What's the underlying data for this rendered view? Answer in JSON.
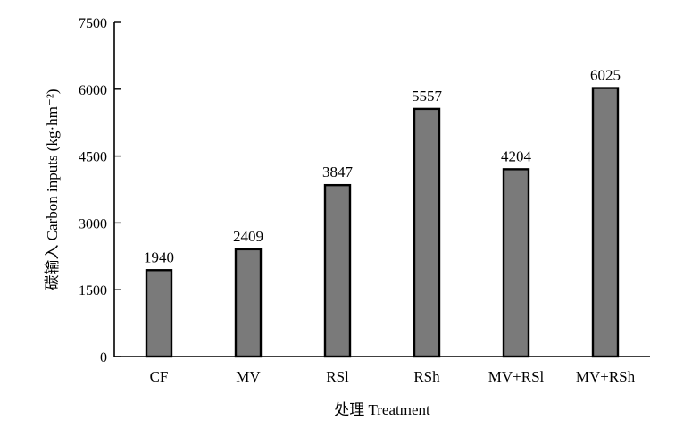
{
  "chart_data": {
    "type": "bar",
    "categories": [
      "CF",
      "MV",
      "RSl",
      "RSh",
      "MV+RSl",
      "MV+RSh"
    ],
    "values": [
      1940,
      2409,
      3847,
      5557,
      4204,
      6025
    ],
    "data_labels": [
      "1940",
      "2409",
      "3847",
      "5557",
      "4204",
      "6025"
    ],
    "xlabel": "处理 Treatment",
    "ylabel": "碳输入 Carbon inputs (kg·hm⁻²)",
    "ylim": [
      0,
      7500
    ],
    "yticks": [
      0,
      1500,
      3000,
      4500,
      6000,
      7500
    ],
    "grid": false,
    "bar_color": "#7a7a7a"
  }
}
